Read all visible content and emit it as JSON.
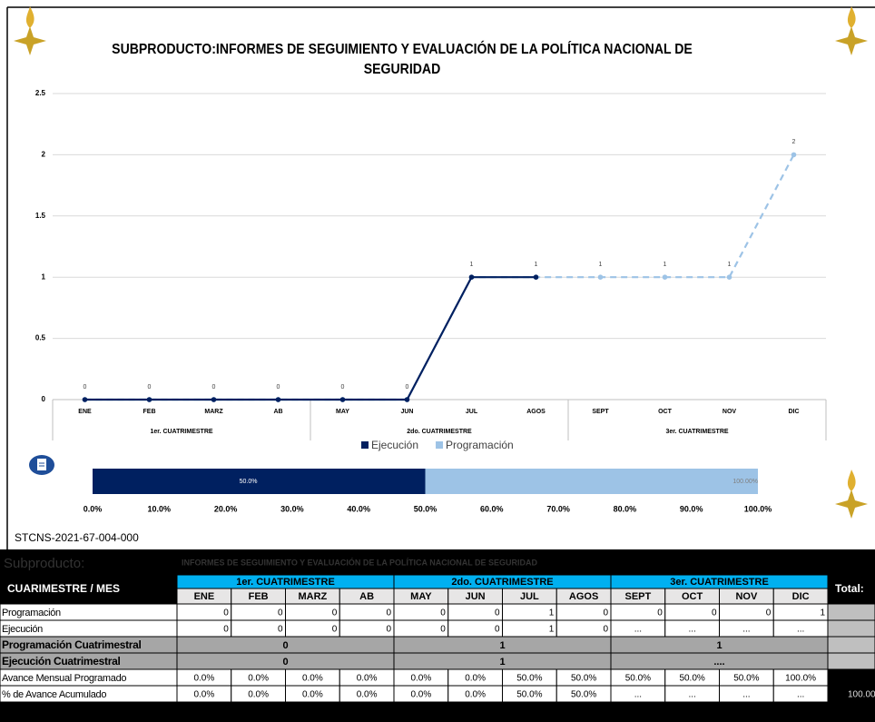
{
  "chart_data": [
    {
      "type": "line",
      "title": "SUBPRODUCTO:INFORMES DE SEGUIMIENTO Y EVALUACIÓN DE LA  POLÍTICA NACIONAL DE SEGURIDAD",
      "categories": [
        "ENE",
        "FEB",
        "MARZ",
        "AB",
        "MAY",
        "JUN",
        "JUL",
        "AGOS",
        "SEPT",
        "OCT",
        "NOV",
        "DIC"
      ],
      "category_groups": [
        "1er. CUATRIMESTRE",
        "2do. CUATRIMESTRE",
        "3er. CUATRIMESTRE"
      ],
      "series": [
        {
          "name": "Ejecución",
          "color": "#002060",
          "values": [
            0,
            0,
            0,
            0,
            0,
            0,
            1,
            1,
            null,
            null,
            null,
            null
          ]
        },
        {
          "name": "Programación",
          "color": "#9dc3e6",
          "dashed": true,
          "values": [
            0,
            0,
            0,
            0,
            0,
            0,
            1,
            1,
            1,
            1,
            1,
            2
          ]
        }
      ],
      "ylim": [
        0,
        2.5
      ],
      "yticks": [
        0,
        0.5,
        1,
        1.5,
        2,
        2.5
      ],
      "grid": true,
      "legend": "bottom"
    },
    {
      "type": "hbar",
      "series": [
        {
          "color": "#002060",
          "values": [
            50
          ],
          "value_labels": [
            "50.0%"
          ]
        },
        {
          "color": "#9dc3e6",
          "values": [
            100
          ],
          "value_labels": [
            "100.00%"
          ]
        }
      ],
      "xlim": [
        0,
        100
      ],
      "xticks": [
        {
          "value": 0,
          "label": "0.0%"
        },
        {
          "value": 10,
          "label": "10.0%"
        },
        {
          "value": 20,
          "label": "20.0%"
        },
        {
          "value": 30,
          "label": "30.0%"
        },
        {
          "value": 40,
          "label": "40.0%"
        },
        {
          "value": 50,
          "label": "50.0%"
        },
        {
          "value": 60,
          "label": "60.0%"
        },
        {
          "value": 70,
          "label": "70.0%"
        },
        {
          "value": 80,
          "label": "80.0%"
        },
        {
          "value": 90,
          "label": "90.0%"
        },
        {
          "value": 100,
          "label": "100.0%"
        }
      ]
    }
  ],
  "code": "STCNS-2021-67-004-000",
  "table": {
    "title_label": "Subproducto:",
    "title": "INFORMES DE SEGUIMIENTO Y EVALUACIÓN DE LA  POLÍTICA NACIONAL DE SEGURIDAD",
    "corner": "CUARIMESTRE / MES",
    "total": "Total:",
    "groups": [
      "1er. CUATRIMESTRE",
      "2do. CUATRIMESTRE",
      "3er. CUATRIMESTRE"
    ],
    "months": [
      "ENE",
      "FEB",
      "MARZ",
      "AB",
      "MAY",
      "JUN",
      "JUL",
      "AGOS",
      "SEPT",
      "OCT",
      "NOV",
      "DIC"
    ],
    "rows": [
      {
        "label": "Programación",
        "cells": [
          0,
          0,
          0,
          0,
          0,
          0,
          1,
          0,
          0,
          0,
          0,
          1
        ]
      },
      {
        "label": "Ejecución",
        "cells": [
          0,
          0,
          0,
          0,
          0,
          0,
          1,
          0,
          "...",
          "...",
          "...",
          "..."
        ]
      },
      {
        "label": "Programación Cuatrimestral",
        "cells": [
          0,
          1,
          1
        ]
      },
      {
        "label": "Ejecución Cuatrimestral",
        "cells": [
          0,
          1,
          "...."
        ]
      },
      {
        "label": "Avance Mensual Programado",
        "cells": [
          "0.0%",
          "0.0%",
          "0.0%",
          "0.0%",
          "0.0%",
          "0.0%",
          "50.0%",
          "50.0%",
          "50.0%",
          "50.0%",
          "50.0%",
          "100.0%"
        ]
      },
      {
        "label": "% de Avance Acumulado",
        "cells": [
          "0.0%",
          "0.0%",
          "0.0%",
          "0.0%",
          "0.0%",
          "0.0%",
          "50.0%",
          "50.0%",
          "...",
          "...",
          "...",
          "..."
        ],
        "total": "100.00"
      }
    ]
  }
}
